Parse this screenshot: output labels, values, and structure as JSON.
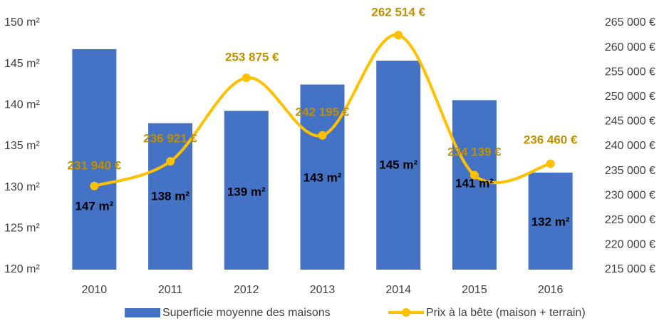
{
  "chart_data": {
    "type": "bar_line",
    "categories": [
      "2010",
      "2011",
      "2012",
      "2013",
      "2014",
      "2015",
      "2016"
    ],
    "series": [
      {
        "name": "Superficie moyenne des maisons",
        "type": "bar",
        "color": "#4472c4",
        "values": [
          146.8,
          137.8,
          139.3,
          142.5,
          145.4,
          140.6,
          131.8
        ],
        "value_labels": [
          "147 m²",
          "138 m²",
          "139 m²",
          "143 m²",
          "145 m²",
          "141 m²",
          "132 m²"
        ]
      },
      {
        "name": "Prix à la bête (maison + terrain)",
        "type": "line",
        "axis": "y2",
        "color": "#ffc000",
        "values": [
          231940,
          236921,
          253875,
          242195,
          262514,
          234139,
          236460
        ],
        "value_labels": [
          "231 940 €",
          "236 921 €",
          "253 875 €",
          "242 195 €",
          "262 514 €",
          "234 139 €",
          "236 460 €"
        ]
      }
    ],
    "ylim": [
      120,
      150
    ],
    "yticks": [
      {
        "value": 120,
        "label": "120 m²"
      },
      {
        "value": 125,
        "label": "125 m²"
      },
      {
        "value": 130,
        "label": "130 m²"
      },
      {
        "value": 135,
        "label": "135 m²"
      },
      {
        "value": 140,
        "label": "140 m²"
      },
      {
        "value": 145,
        "label": "145 m²"
      },
      {
        "value": 150,
        "label": "150 m²"
      }
    ],
    "y2lim": [
      215000,
      265000
    ],
    "y2ticks": [
      {
        "value": 215000,
        "label": "215 000 €"
      },
      {
        "value": 220000,
        "label": "220 000 €"
      },
      {
        "value": 225000,
        "label": "225 000 €"
      },
      {
        "value": 230000,
        "label": "230 000 €"
      },
      {
        "value": 235000,
        "label": "235 000 €"
      },
      {
        "value": 240000,
        "label": "240 000 €"
      },
      {
        "value": 245000,
        "label": "245 000 €"
      },
      {
        "value": 250000,
        "label": "250 000 €"
      },
      {
        "value": 255000,
        "label": "255 000 €"
      },
      {
        "value": 260000,
        "label": "260 000 €"
      },
      {
        "value": 265000,
        "label": "265 000 €"
      }
    ],
    "smooth": true,
    "legend": "bottom"
  }
}
